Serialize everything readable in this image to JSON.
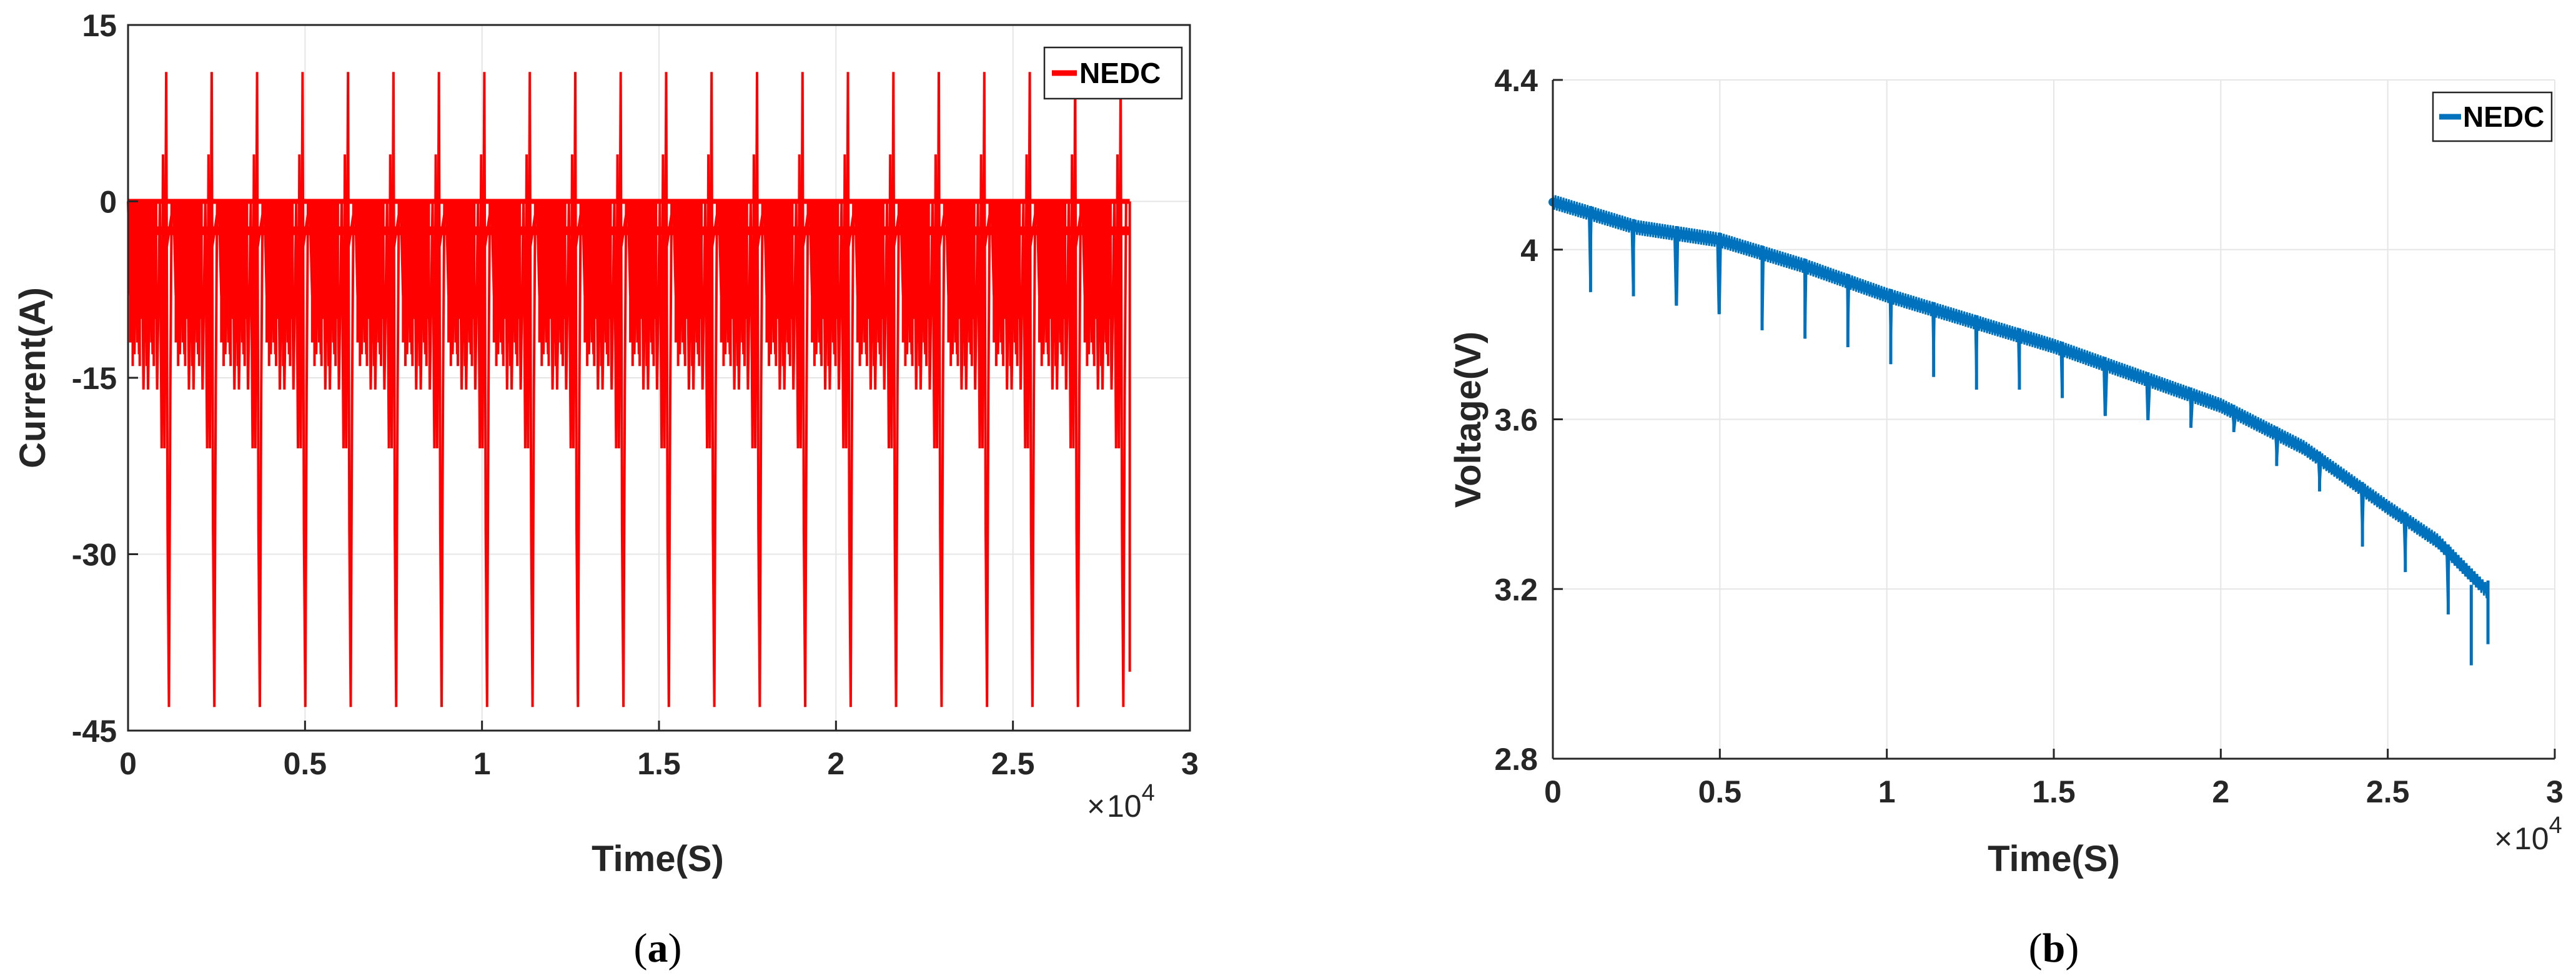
{
  "chart_data": [
    {
      "type": "line",
      "panel": "a",
      "caption_label": "a",
      "title": "",
      "xlabel": "Time(S)",
      "ylabel": "Current(A)",
      "x_multiplier": "10",
      "x_multiplier_exp": "4",
      "xlim": [
        0,
        3
      ],
      "ylim": [
        -45,
        15
      ],
      "xticks": [
        0,
        0.5,
        1,
        1.5,
        2,
        2.5,
        3
      ],
      "xtick_labels": [
        "0",
        "0.5",
        "1",
        "1.5",
        "2",
        "2.5",
        "3"
      ],
      "yticks": [
        -45,
        -30,
        -15,
        0,
        15
      ],
      "ytick_labels": [
        "-45",
        "-30",
        "-15",
        "0",
        "15"
      ],
      "grid": true,
      "legend": "top-right",
      "series": [
        {
          "name": "NEDC",
          "color": "#ff0000",
          "cycles": 22,
          "cycle_period": 0.1284,
          "end_x": 2.83,
          "levels": [
            0,
            -8,
            -13,
            -16,
            -21,
            -35,
            -43,
            4,
            11
          ],
          "min_value": -43,
          "max_value": 11
        }
      ]
    },
    {
      "type": "line",
      "panel": "b",
      "caption_label": "b",
      "title": "",
      "xlabel": "Time(S)",
      "ylabel": "Voltage(V)",
      "x_multiplier": "10",
      "x_multiplier_exp": "4",
      "xlim": [
        0,
        3
      ],
      "ylim": [
        2.8,
        4.4
      ],
      "xticks": [
        0,
        0.5,
        1,
        1.5,
        2,
        2.5,
        3
      ],
      "xtick_labels": [
        "0",
        "0.5",
        "1",
        "1.5",
        "2",
        "2.5",
        "3"
      ],
      "yticks": [
        2.8,
        3.2,
        3.6,
        4,
        4.4
      ],
      "ytick_labels": [
        "2.8",
        "3.2",
        "3.6",
        "4",
        "4.4"
      ],
      "grid": true,
      "legend": "top-right",
      "series": [
        {
          "name": "NEDC",
          "color": "#0072bd",
          "cycles": 22,
          "cycle_period": 0.1284,
          "end_x": 2.8,
          "trend_x": [
            0,
            0.25,
            0.5,
            0.75,
            1.0,
            1.25,
            1.5,
            1.75,
            2.0,
            2.25,
            2.5,
            2.65,
            2.8
          ],
          "trend_y": [
            4.13,
            4.07,
            4.04,
            3.98,
            3.91,
            3.85,
            3.79,
            3.72,
            3.65,
            3.55,
            3.41,
            3.33,
            3.21
          ],
          "dip_values": [
            3.9,
            3.89,
            3.87,
            3.85,
            3.81,
            3.79,
            3.77,
            3.73,
            3.7,
            3.67,
            3.67,
            3.65,
            3.61,
            3.6,
            3.58,
            3.57,
            3.49,
            3.43,
            3.3,
            3.24,
            3.14,
            3.02
          ],
          "min_value": 3.02,
          "max_value": 4.14
        }
      ]
    }
  ]
}
